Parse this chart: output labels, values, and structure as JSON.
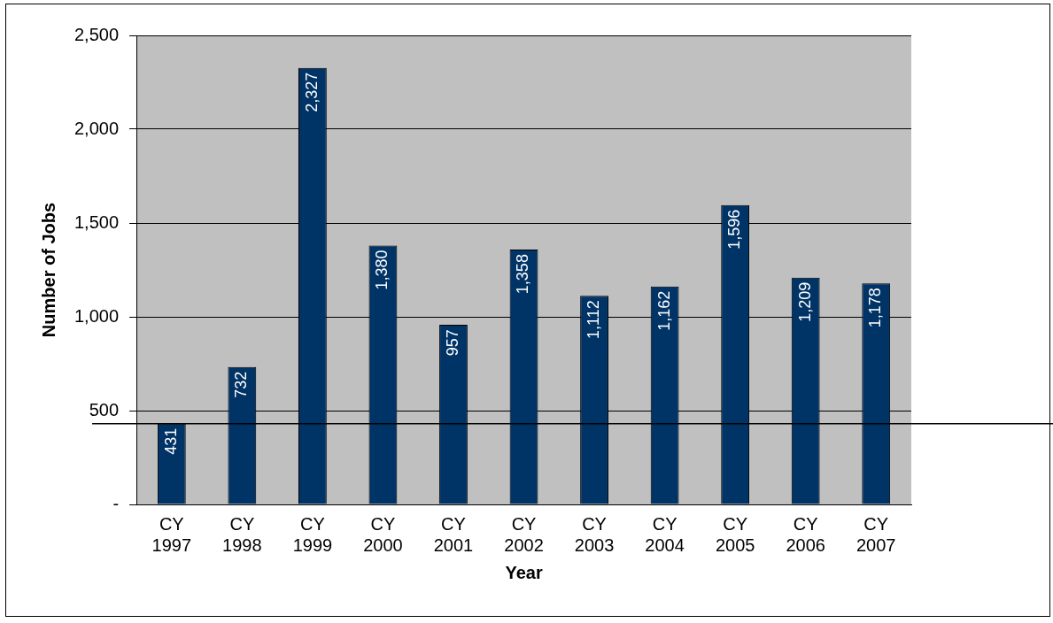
{
  "chart_data": {
    "type": "bar",
    "xlabel": "Year",
    "ylabel": "Number of Jobs",
    "categories": [
      "CY 1997",
      "CY 1998",
      "CY 1999",
      "CY 2000",
      "CY 2001",
      "CY 2002",
      "CY 2003",
      "CY 2004",
      "CY 2005",
      "CY 2006",
      "CY 2007"
    ],
    "values": [
      431,
      732,
      2327,
      1380,
      957,
      1358,
      1112,
      1162,
      1596,
      1209,
      1178
    ],
    "value_labels": [
      "431",
      "732",
      "2,327",
      "1,380",
      "957",
      "1,358",
      "1,112",
      "1,162",
      "1,596",
      "1,209",
      "1,178"
    ],
    "color": "#003366",
    "ylim": [
      0,
      2500
    ],
    "yticks": [
      {
        "value": 0,
        "label": "-"
      },
      500,
      {
        "value": 1000,
        "label": "1,000"
      },
      {
        "value": 1500,
        "label": "1,500"
      },
      {
        "value": 2000,
        "label": "2,000"
      },
      {
        "value": 2500,
        "label": "2,500"
      }
    ],
    "grid": "y",
    "legend": false,
    "ref_lines": [
      {
        "axis": "y",
        "value": 431,
        "color": "#000000"
      }
    ]
  }
}
